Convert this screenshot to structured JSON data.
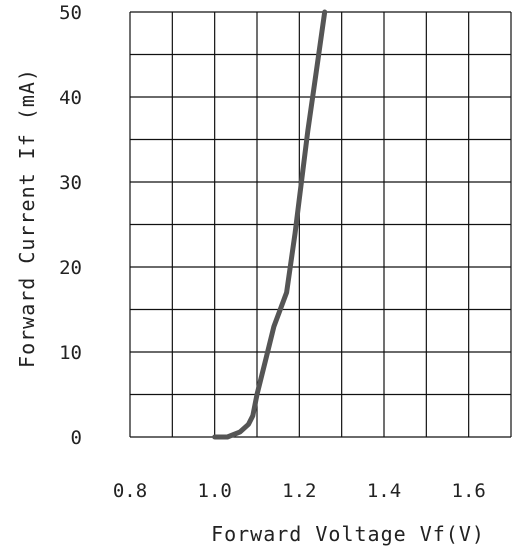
{
  "chart_data": {
    "type": "line",
    "title": "",
    "xlabel": "Forward Voltage Vf(V)",
    "ylabel": "Forward Current If (mA)",
    "xlim": [
      0.8,
      1.7
    ],
    "ylim": [
      0,
      50
    ],
    "x_ticks": [
      "0.8",
      "1.0",
      "1.2",
      "1.4",
      "1.6"
    ],
    "y_ticks": [
      "0",
      "10",
      "20",
      "30",
      "40",
      "50"
    ],
    "grid": true,
    "series": [
      {
        "color": "#555555",
        "x": [
          1.0,
          1.03,
          1.06,
          1.08,
          1.09,
          1.1,
          1.12,
          1.14,
          1.17,
          1.19,
          1.2,
          1.22,
          1.24,
          1.26
        ],
        "y": [
          0,
          0,
          0.6,
          1.5,
          2.5,
          5,
          9,
          13,
          17,
          24,
          28,
          36,
          43,
          50
        ]
      }
    ]
  }
}
